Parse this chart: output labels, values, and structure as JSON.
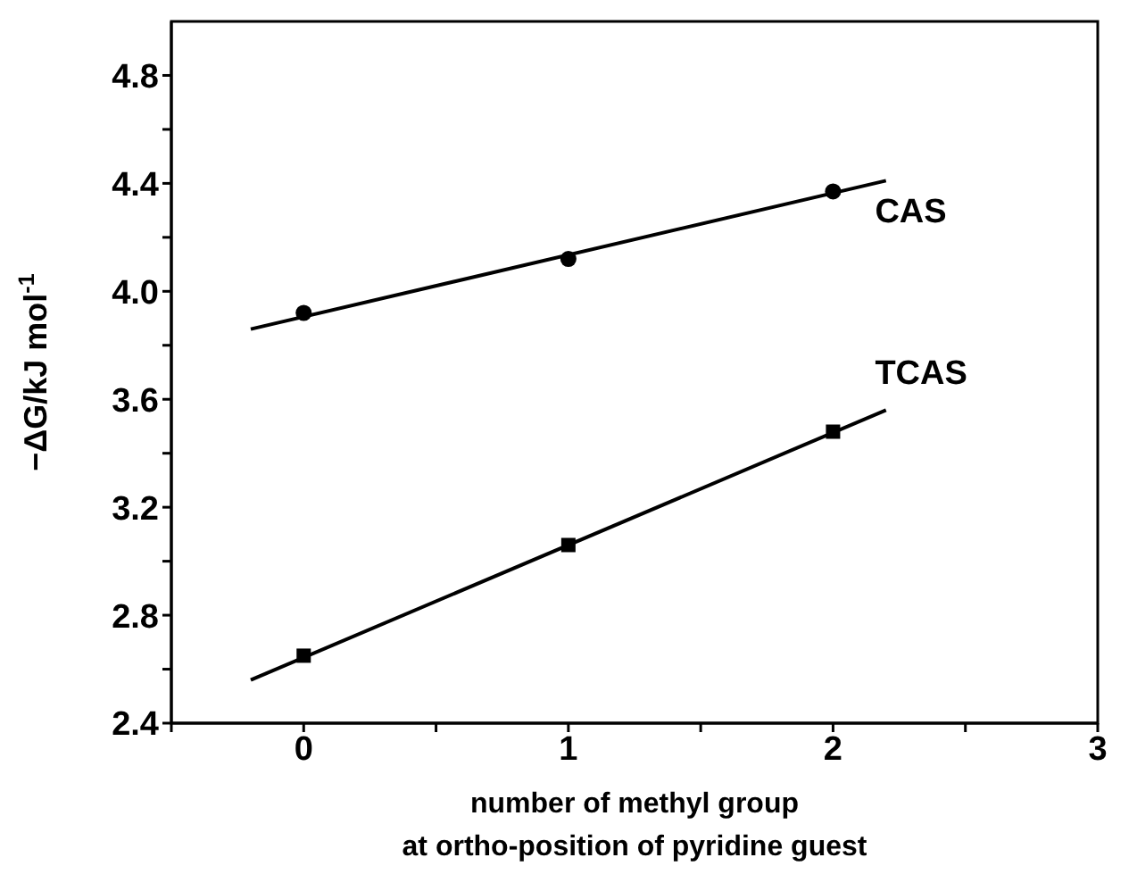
{
  "chart_data": {
    "type": "scatter",
    "xlabel": "number of methyl group\nat ortho-position of pyridine guest",
    "ylabel": "−ΔG/kJ mol$^{-1}$",
    "xlim": [
      -0.5,
      3
    ],
    "ylim": [
      2.4,
      5.0
    ],
    "xticks": [
      {
        "value": -0.5,
        "label": null
      },
      0,
      {
        "value": 0.5,
        "label": null
      },
      1,
      {
        "value": 1.5,
        "label": null
      },
      2,
      {
        "value": 2.5,
        "label": null
      },
      3
    ],
    "yticks": [
      2.4,
      {
        "value": 2.6,
        "label": null
      },
      2.8,
      {
        "value": 3.0,
        "label": null
      },
      3.2,
      {
        "value": 3.4,
        "label": null
      },
      3.6,
      {
        "value": 3.8,
        "label": null
      },
      {
        "value": 4,
        "label": "4.0"
      },
      {
        "value": 4.2,
        "label": null
      },
      4.4,
      {
        "value": 4.6,
        "label": null
      },
      4.8
    ],
    "grid": false,
    "legend": false,
    "series": [
      {
        "name": "CAS",
        "marker": "circle",
        "color": "#000000",
        "x": [
          0,
          1,
          2
        ],
        "values": [
          3.92,
          4.12,
          4.37
        ]
      },
      {
        "name": "TCAS",
        "marker": "square",
        "color": "#000000",
        "x": [
          0,
          1,
          2
        ],
        "values": [
          2.65,
          3.06,
          3.48
        ]
      },
      {
        "type": "line",
        "color": "#000000",
        "x": [
          -0.2,
          2.2
        ],
        "values": [
          3.86,
          4.41
        ]
      },
      {
        "type": "line",
        "color": "#000000",
        "x": [
          -0.2,
          2.2
        ],
        "values": [
          2.56,
          3.56
        ]
      }
    ]
  }
}
